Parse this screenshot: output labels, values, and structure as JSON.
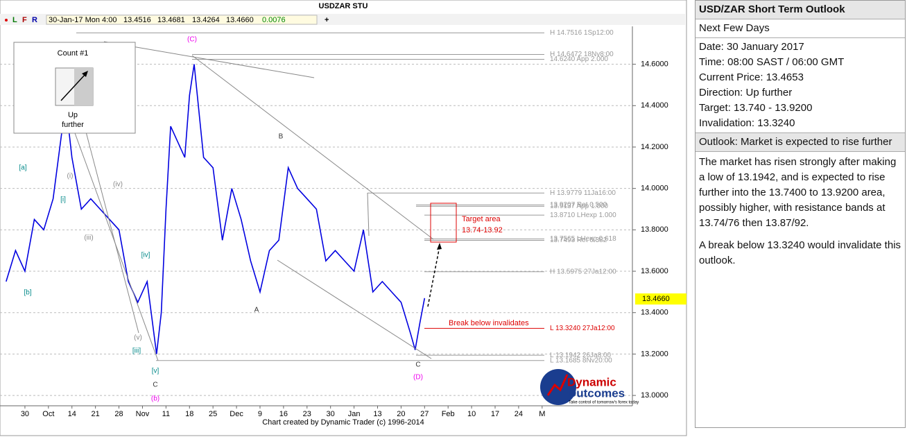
{
  "chart_data": {
    "type": "line",
    "title": "USDZAR STU",
    "x": [
      -4,
      -2,
      0,
      2,
      4,
      6,
      8,
      9,
      10,
      12,
      14,
      16,
      18,
      20,
      22,
      24,
      26,
      28,
      29,
      30,
      31,
      32,
      34,
      35,
      36,
      38,
      40,
      42,
      44,
      46,
      48,
      50,
      52,
      54,
      56,
      58,
      60,
      62,
      64,
      66,
      68,
      70,
      72,
      74,
      76,
      78,
      80,
      82,
      83,
      84,
      85
    ],
    "series": [
      {
        "name": "USDZAR",
        "color": "#0000e0",
        "values": [
          13.55,
          13.7,
          13.6,
          13.85,
          13.8,
          13.95,
          14.3,
          14.35,
          14.15,
          13.9,
          13.95,
          13.9,
          13.85,
          13.8,
          13.55,
          13.45,
          13.55,
          13.2,
          13.4,
          13.9,
          14.3,
          14.25,
          14.15,
          14.45,
          14.6,
          14.15,
          14.1,
          13.75,
          14.0,
          13.85,
          13.65,
          13.5,
          13.7,
          13.75,
          14.1,
          14.0,
          13.95,
          13.9,
          13.65,
          13.7,
          13.65,
          13.6,
          13.8,
          13.5,
          13.55,
          13.5,
          13.45,
          13.3,
          13.22,
          13.35,
          13.47
        ]
      }
    ],
    "xlim": [
      -5.3,
      129.2
    ],
    "xticks": [
      {
        "value": 0,
        "label": "30"
      },
      {
        "value": 5,
        "label": "Oct"
      },
      {
        "value": 10,
        "label": "14"
      },
      {
        "value": 15,
        "label": "21"
      },
      {
        "value": 20,
        "label": "28"
      },
      {
        "value": 25,
        "label": "Nov"
      },
      {
        "value": 30,
        "label": "11"
      },
      {
        "value": 35,
        "label": "18"
      },
      {
        "value": 40,
        "label": "25"
      },
      {
        "value": 45,
        "label": "Dec"
      },
      {
        "value": 50,
        "label": "9"
      },
      {
        "value": 55,
        "label": "16"
      },
      {
        "value": 60,
        "label": "23"
      },
      {
        "value": 65,
        "label": "30"
      },
      {
        "value": 70,
        "label": "Jan"
      },
      {
        "value": 75,
        "label": "13"
      },
      {
        "value": 80,
        "label": "20"
      },
      {
        "value": 85,
        "label": "27"
      },
      {
        "value": 90,
        "label": "Feb"
      },
      {
        "value": 95,
        "label": "10"
      },
      {
        "value": 100,
        "label": "17"
      },
      {
        "value": 105,
        "label": "24"
      },
      {
        "value": 110,
        "label": "M"
      }
    ],
    "ylim": [
      12.95,
      14.85
    ],
    "yticks": [
      {
        "value": 13,
        "label": "13.0000"
      },
      {
        "value": 13.2,
        "label": "13.2000"
      },
      {
        "value": 13.4,
        "label": "13.4000"
      },
      {
        "value": 13.6,
        "label": "13.6000"
      },
      {
        "value": 13.8,
        "label": "13.8000"
      },
      {
        "value": 14,
        "label": "14.0000"
      },
      {
        "value": 14.2,
        "label": "14.2000"
      },
      {
        "value": 14.4,
        "label": "14.4000"
      },
      {
        "value": 14.6,
        "label": "14.6000"
      }
    ],
    "grid": true,
    "current_price": {
      "value": 13.466,
      "label": "13.4660"
    },
    "levels": [
      {
        "value": 14.7516,
        "label": "H 14.7516 1Sp12:00",
        "color": "#999"
      },
      {
        "value": 14.6472,
        "label": "H 14.6472 18Nv8:00",
        "color": "#999"
      },
      {
        "value": 14.624,
        "label": "14.6240 App 2.000",
        "color": "#999"
      },
      {
        "value": 13.9779,
        "label": "H 13.9779 11Ja16:00",
        "color": "#999"
      },
      {
        "value": 13.9207,
        "label": "13.9207 Ret 0.500",
        "color": "#999"
      },
      {
        "value": 13.9137,
        "label": "13.9137 App 1.000",
        "color": "#999"
      },
      {
        "value": 13.871,
        "label": "13.8710 LHexp 1.000",
        "color": "#999"
      },
      {
        "value": 13.7565,
        "label": "13.7565 LHexp 0.618",
        "color": "#999"
      },
      {
        "value": 13.7493,
        "label": "13.7493 Ret 0.382",
        "color": "#999"
      },
      {
        "value": 13.5975,
        "label": "H 13.5975 27Ja12:00",
        "color": "#999"
      },
      {
        "value": 13.324,
        "label": "L 13.3240 27Ja12:00",
        "color": "#d00"
      },
      {
        "value": 13.1942,
        "label": "L 13.1942 26Ja8:00",
        "color": "#999"
      },
      {
        "value": 13.1685,
        "label": "L 13.1685 8Nv20:00",
        "color": "#999"
      }
    ],
    "wave_labels": [
      {
        "text": "(C)",
        "color": "#e0e"
      },
      {
        "text": "B",
        "color": "#333"
      },
      {
        "text": "A",
        "color": "#333"
      },
      {
        "text": "C",
        "color": "#333"
      },
      {
        "text": "(D)",
        "color": "#e0e"
      },
      {
        "text": "[a]",
        "color": "#088"
      },
      {
        "text": "[b]",
        "color": "#088"
      },
      {
        "text": "[i]",
        "color": "#088"
      },
      {
        "text": "(i)",
        "color": "#888"
      },
      {
        "text": "(iv)",
        "color": "#888"
      },
      {
        "text": "(iii)",
        "color": "#888"
      },
      {
        "text": "[iv]",
        "color": "#088"
      },
      {
        "text": "(v)",
        "color": "#888"
      },
      {
        "text": "[iii]",
        "color": "#088"
      },
      {
        "text": "[v]",
        "color": "#088"
      },
      {
        "text": "C",
        "color": "#333"
      },
      {
        "text": "(b)",
        "color": "#e0e"
      }
    ]
  },
  "toolbar": {
    "buttons": [
      "L",
      "F",
      "R"
    ],
    "quote": [
      "30-Jan-17 Mon 4:00",
      "13.4516",
      "13.4681",
      "13.4264",
      "13.4660",
      "0.0076"
    ]
  },
  "count_box": {
    "title": "Count #1",
    "lines": [
      "Up",
      "further"
    ]
  },
  "target_area": {
    "lines": [
      "Target area",
      "13.74-13.92"
    ]
  },
  "invalidation_label": "Break below invalidates",
  "logo": [
    "Dynamic",
    "Outcomes",
    "Take control of tomorrow's forex today"
  ],
  "footer": "Chart created by Dynamic Trader  (c) 1996-2014",
  "panel": {
    "title": "USD/ZAR Short Term Outlook",
    "subtitle": "Next Few Days",
    "details": [
      "Date: 30 January 2017",
      "Time: 08:00 SAST / 06:00 GMT",
      "Current Price: 13.4653",
      "Direction:  Up further",
      "Target: 13.740 - 13.9200",
      "Invalidation: 13.3240"
    ],
    "outlook": "Outlook:  Market is expected to rise further",
    "body": [
      "The market has risen strongly after making a low of 13.1942, and is expected to rise further into the 13.7400 to 13.9200 area, possibly higher, with resistance bands at 13.74/76 then 13.87/92.",
      "A break below 13.3240 would invalidate this outlook."
    ]
  }
}
